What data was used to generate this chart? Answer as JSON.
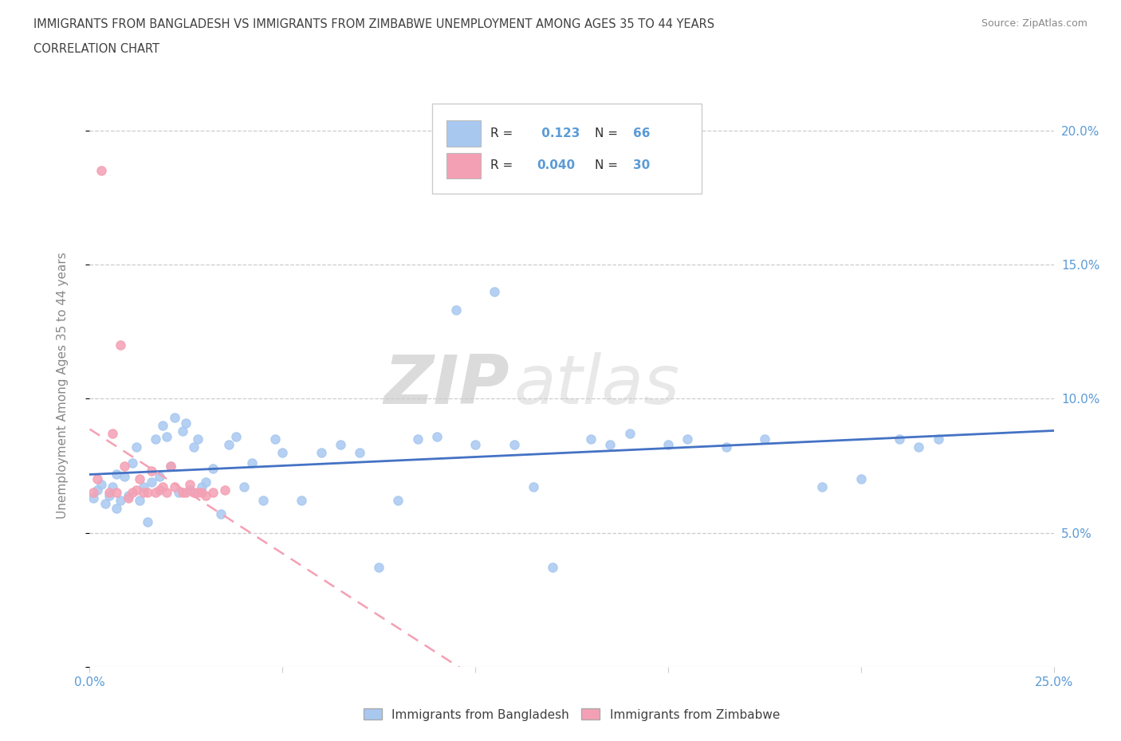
{
  "title_line1": "IMMIGRANTS FROM BANGLADESH VS IMMIGRANTS FROM ZIMBABWE UNEMPLOYMENT AMONG AGES 35 TO 44 YEARS",
  "title_line2": "CORRELATION CHART",
  "source_text": "Source: ZipAtlas.com",
  "ylabel": "Unemployment Among Ages 35 to 44 years",
  "xlim": [
    0.0,
    0.25
  ],
  "ylim": [
    0.0,
    0.21
  ],
  "x_ticks": [
    0.0,
    0.05,
    0.1,
    0.15,
    0.2,
    0.25
  ],
  "y_ticks": [
    0.0,
    0.05,
    0.1,
    0.15,
    0.2
  ],
  "watermark_zip": "ZIP",
  "watermark_atlas": "atlas",
  "bangladesh_color": "#a8c8f0",
  "zimbabwe_color": "#f4a0b4",
  "bangladesh_line_color": "#4472c4",
  "zimbabwe_line_color": "#f4a0b4",
  "bangladesh_x": [
    0.001,
    0.002,
    0.003,
    0.004,
    0.005,
    0.006,
    0.007,
    0.007,
    0.008,
    0.009,
    0.01,
    0.011,
    0.012,
    0.013,
    0.014,
    0.015,
    0.016,
    0.017,
    0.018,
    0.019,
    0.02,
    0.021,
    0.022,
    0.023,
    0.024,
    0.025,
    0.026,
    0.027,
    0.028,
    0.029,
    0.03,
    0.032,
    0.034,
    0.036,
    0.038,
    0.04,
    0.042,
    0.045,
    0.048,
    0.05,
    0.055,
    0.06,
    0.065,
    0.07,
    0.075,
    0.08,
    0.085,
    0.09,
    0.095,
    0.1,
    0.105,
    0.11,
    0.115,
    0.12,
    0.13,
    0.135,
    0.14,
    0.15,
    0.155,
    0.165,
    0.175,
    0.19,
    0.2,
    0.21,
    0.215,
    0.22
  ],
  "bangladesh_y": [
    0.063,
    0.066,
    0.068,
    0.061,
    0.064,
    0.067,
    0.059,
    0.072,
    0.062,
    0.071,
    0.064,
    0.076,
    0.082,
    0.062,
    0.067,
    0.054,
    0.069,
    0.085,
    0.071,
    0.09,
    0.086,
    0.075,
    0.093,
    0.065,
    0.088,
    0.091,
    0.066,
    0.082,
    0.085,
    0.067,
    0.069,
    0.074,
    0.057,
    0.083,
    0.086,
    0.067,
    0.076,
    0.062,
    0.085,
    0.08,
    0.062,
    0.08,
    0.083,
    0.08,
    0.037,
    0.062,
    0.085,
    0.086,
    0.133,
    0.083,
    0.14,
    0.083,
    0.067,
    0.037,
    0.085,
    0.083,
    0.087,
    0.083,
    0.085,
    0.082,
    0.085,
    0.067,
    0.07,
    0.085,
    0.082,
    0.085
  ],
  "zimbabwe_x": [
    0.001,
    0.002,
    0.003,
    0.005,
    0.006,
    0.007,
    0.008,
    0.009,
    0.01,
    0.011,
    0.012,
    0.013,
    0.014,
    0.015,
    0.016,
    0.017,
    0.018,
    0.019,
    0.02,
    0.021,
    0.022,
    0.024,
    0.025,
    0.026,
    0.027,
    0.028,
    0.029,
    0.03,
    0.032,
    0.035
  ],
  "zimbabwe_y": [
    0.065,
    0.07,
    0.185,
    0.065,
    0.087,
    0.065,
    0.12,
    0.075,
    0.063,
    0.065,
    0.066,
    0.07,
    0.065,
    0.065,
    0.073,
    0.065,
    0.066,
    0.067,
    0.065,
    0.075,
    0.067,
    0.065,
    0.065,
    0.068,
    0.065,
    0.065,
    0.065,
    0.064,
    0.065,
    0.066
  ]
}
